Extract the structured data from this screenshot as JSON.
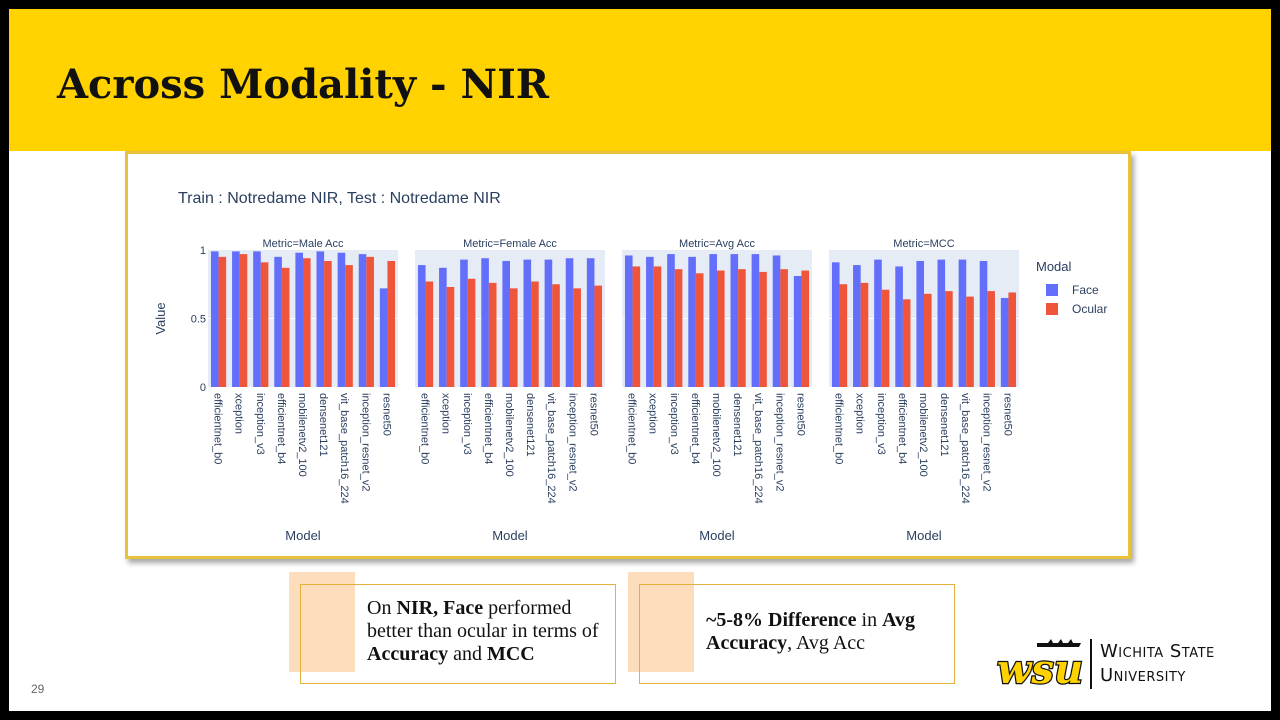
{
  "slide": {
    "title": "Across Modality - NIR",
    "page_number": "29"
  },
  "notes": [
    {
      "parts": [
        {
          "text": "On ",
          "bold": false
        },
        {
          "text": "NIR, Face",
          "bold": true
        },
        {
          "text": " performed better than ocular in terms of  ",
          "bold": false
        },
        {
          "text": "Accuracy",
          "bold": true
        },
        {
          "text": " and ",
          "bold": false
        },
        {
          "text": "MCC",
          "bold": true
        }
      ]
    },
    {
      "parts": [
        {
          "text": "~5-8% Difference",
          "bold": true
        },
        {
          "text": " in ",
          "bold": false
        },
        {
          "text": "Avg Accuracy",
          "bold": true
        },
        {
          "text": ", Avg Acc",
          "bold": false
        }
      ]
    }
  ],
  "logo": {
    "mark_text": "wsu",
    "line1": "Wichita State",
    "line2": "University"
  },
  "chart_data": {
    "type": "bar",
    "title": "Train : Notredame NIR, Test : Notredame NIR",
    "ylabel": "Value",
    "xlabel": "Model",
    "ylim": [
      0,
      1
    ],
    "yticks": [
      0,
      0.5,
      1
    ],
    "ytick_labels": [
      "0",
      "0.5",
      "1"
    ],
    "legend": {
      "title": "Modal",
      "position": "right",
      "entries": [
        {
          "name": "Face",
          "color": "#636EFA"
        },
        {
          "name": "Ocular",
          "color": "#EF553B"
        }
      ]
    },
    "categories": [
      "efficientnet_b0",
      "xception",
      "inception_v3",
      "efficientnet_b4",
      "mobilenetv2_100",
      "densenet121",
      "vit_base_patch16_224",
      "inception_resnet_v2",
      "resnet50"
    ],
    "panels": [
      {
        "title": "Metric=Male Acc",
        "series": [
          {
            "name": "Face",
            "values": [
              0.99,
              0.99,
              0.99,
              0.95,
              0.98,
              0.99,
              0.98,
              0.97,
              0.72
            ]
          },
          {
            "name": "Ocular",
            "values": [
              0.95,
              0.97,
              0.91,
              0.87,
              0.94,
              0.92,
              0.89,
              0.95,
              0.92
            ]
          }
        ]
      },
      {
        "title": "Metric=Female Acc",
        "series": [
          {
            "name": "Face",
            "values": [
              0.89,
              0.87,
              0.93,
              0.94,
              0.92,
              0.93,
              0.93,
              0.94,
              0.94
            ]
          },
          {
            "name": "Ocular",
            "values": [
              0.77,
              0.73,
              0.79,
              0.76,
              0.72,
              0.77,
              0.75,
              0.72,
              0.74
            ]
          }
        ]
      },
      {
        "title": "Metric=Avg Acc",
        "series": [
          {
            "name": "Face",
            "values": [
              0.96,
              0.95,
              0.97,
              0.95,
              0.97,
              0.97,
              0.97,
              0.96,
              0.81
            ]
          },
          {
            "name": "Ocular",
            "values": [
              0.88,
              0.88,
              0.86,
              0.83,
              0.85,
              0.86,
              0.84,
              0.86,
              0.85
            ]
          }
        ]
      },
      {
        "title": "Metric=MCC",
        "series": [
          {
            "name": "Face",
            "values": [
              0.91,
              0.89,
              0.93,
              0.88,
              0.92,
              0.93,
              0.93,
              0.92,
              0.65
            ]
          },
          {
            "name": "Ocular",
            "values": [
              0.75,
              0.76,
              0.71,
              0.64,
              0.68,
              0.7,
              0.66,
              0.7,
              0.69
            ]
          }
        ]
      }
    ]
  }
}
